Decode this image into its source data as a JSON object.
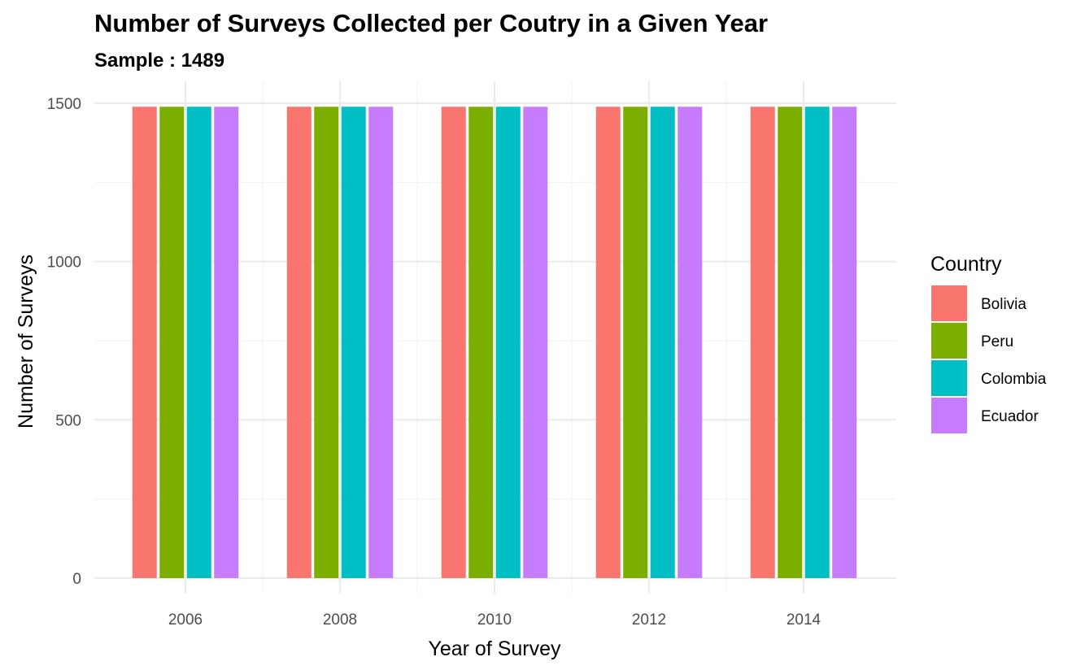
{
  "chart_data": {
    "type": "bar",
    "title": "Number of Surveys Collected per Coutry in a Given Year",
    "subtitle": "Sample : 1489",
    "xlabel": "Year of Survey",
    "ylabel": "Number of Surveys",
    "categories": [
      "2006",
      "2008",
      "2010",
      "2012",
      "2014"
    ],
    "y_ticks": [
      "0",
      "500",
      "1000",
      "1500"
    ],
    "ylim": [
      0,
      1500
    ],
    "grid": true,
    "legend": {
      "title": "Country",
      "placement": "right"
    },
    "series": [
      {
        "name": "Bolivia",
        "color": "#F8766D",
        "values": [
          1489,
          1489,
          1489,
          1489,
          1489
        ]
      },
      {
        "name": "Peru",
        "color": "#7CAE00",
        "values": [
          1489,
          1489,
          1489,
          1489,
          1489
        ]
      },
      {
        "name": "Colombia",
        "color": "#00BFC4",
        "values": [
          1489,
          1489,
          1489,
          1489,
          1489
        ]
      },
      {
        "name": "Ecuador",
        "color": "#C77CFF",
        "values": [
          1489,
          1489,
          1489,
          1489,
          1489
        ]
      }
    ]
  }
}
